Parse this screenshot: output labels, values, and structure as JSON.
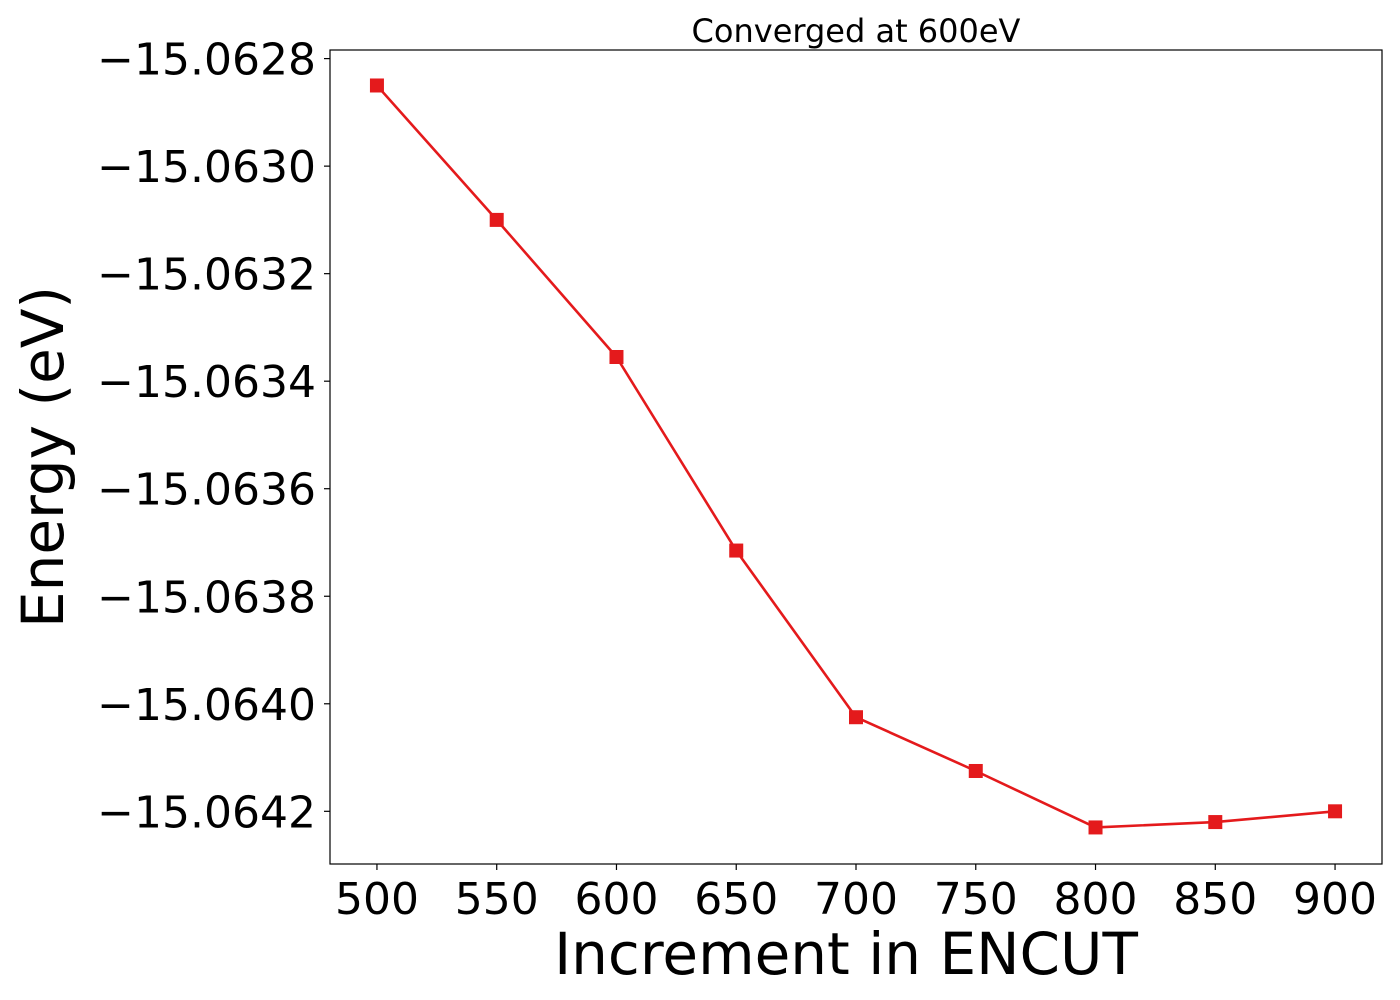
{
  "chart_data": {
    "type": "line",
    "title": "Converged at 600eV",
    "xlabel": "Increment in ENCUT",
    "ylabel": "Energy (eV)",
    "x": [
      500,
      550,
      600,
      650,
      700,
      750,
      800,
      850,
      900
    ],
    "series": [
      {
        "values": [
          -15.06285,
          -15.0631,
          -15.063355,
          -15.063715,
          -15.064025,
          -15.064125,
          -15.06423,
          -15.06422,
          -15.0642
        ],
        "color": "#e41a1c",
        "marker": "square"
      }
    ],
    "xticks": [
      500,
      550,
      600,
      650,
      700,
      750,
      800,
      850,
      900
    ],
    "xtick_labels": [
      "500",
      "550",
      "600",
      "650",
      "700",
      "750",
      "800",
      "850",
      "900"
    ],
    "yticks": [
      -15.0628,
      -15.063,
      -15.0632,
      -15.0634,
      -15.0636,
      -15.0638,
      -15.064,
      -15.0642
    ],
    "ytick_labels": [
      "−15.0628",
      "−15.0630",
      "−15.0632",
      "−15.0634",
      "−15.0636",
      "−15.0638",
      "−15.0640",
      "−15.0642"
    ],
    "xlim": [
      480.4,
      919.6
    ],
    "ylim": [
      -15.064298,
      -15.062784
    ],
    "grid": false,
    "legend": false
  }
}
